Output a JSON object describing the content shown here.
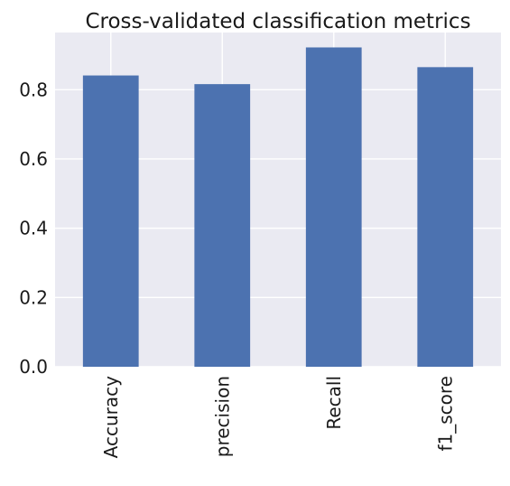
{
  "chart_data": {
    "type": "bar",
    "title": "Cross-validated classification metrics",
    "xlabel": "",
    "ylabel": "",
    "categories": [
      "Accuracy",
      "precision",
      "Recall",
      "f1_score"
    ],
    "values": [
      0.841,
      0.816,
      0.922,
      0.865
    ],
    "yticks": [
      "0.0",
      "0.2",
      "0.4",
      "0.6",
      "0.8"
    ],
    "ylim": [
      0,
      0.965
    ],
    "grid": true,
    "style": "seaborn-darkgrid",
    "colors": {
      "bar": "#4c72b0",
      "plot_background": "#eaeaf2",
      "grid": "#ffffff"
    }
  }
}
